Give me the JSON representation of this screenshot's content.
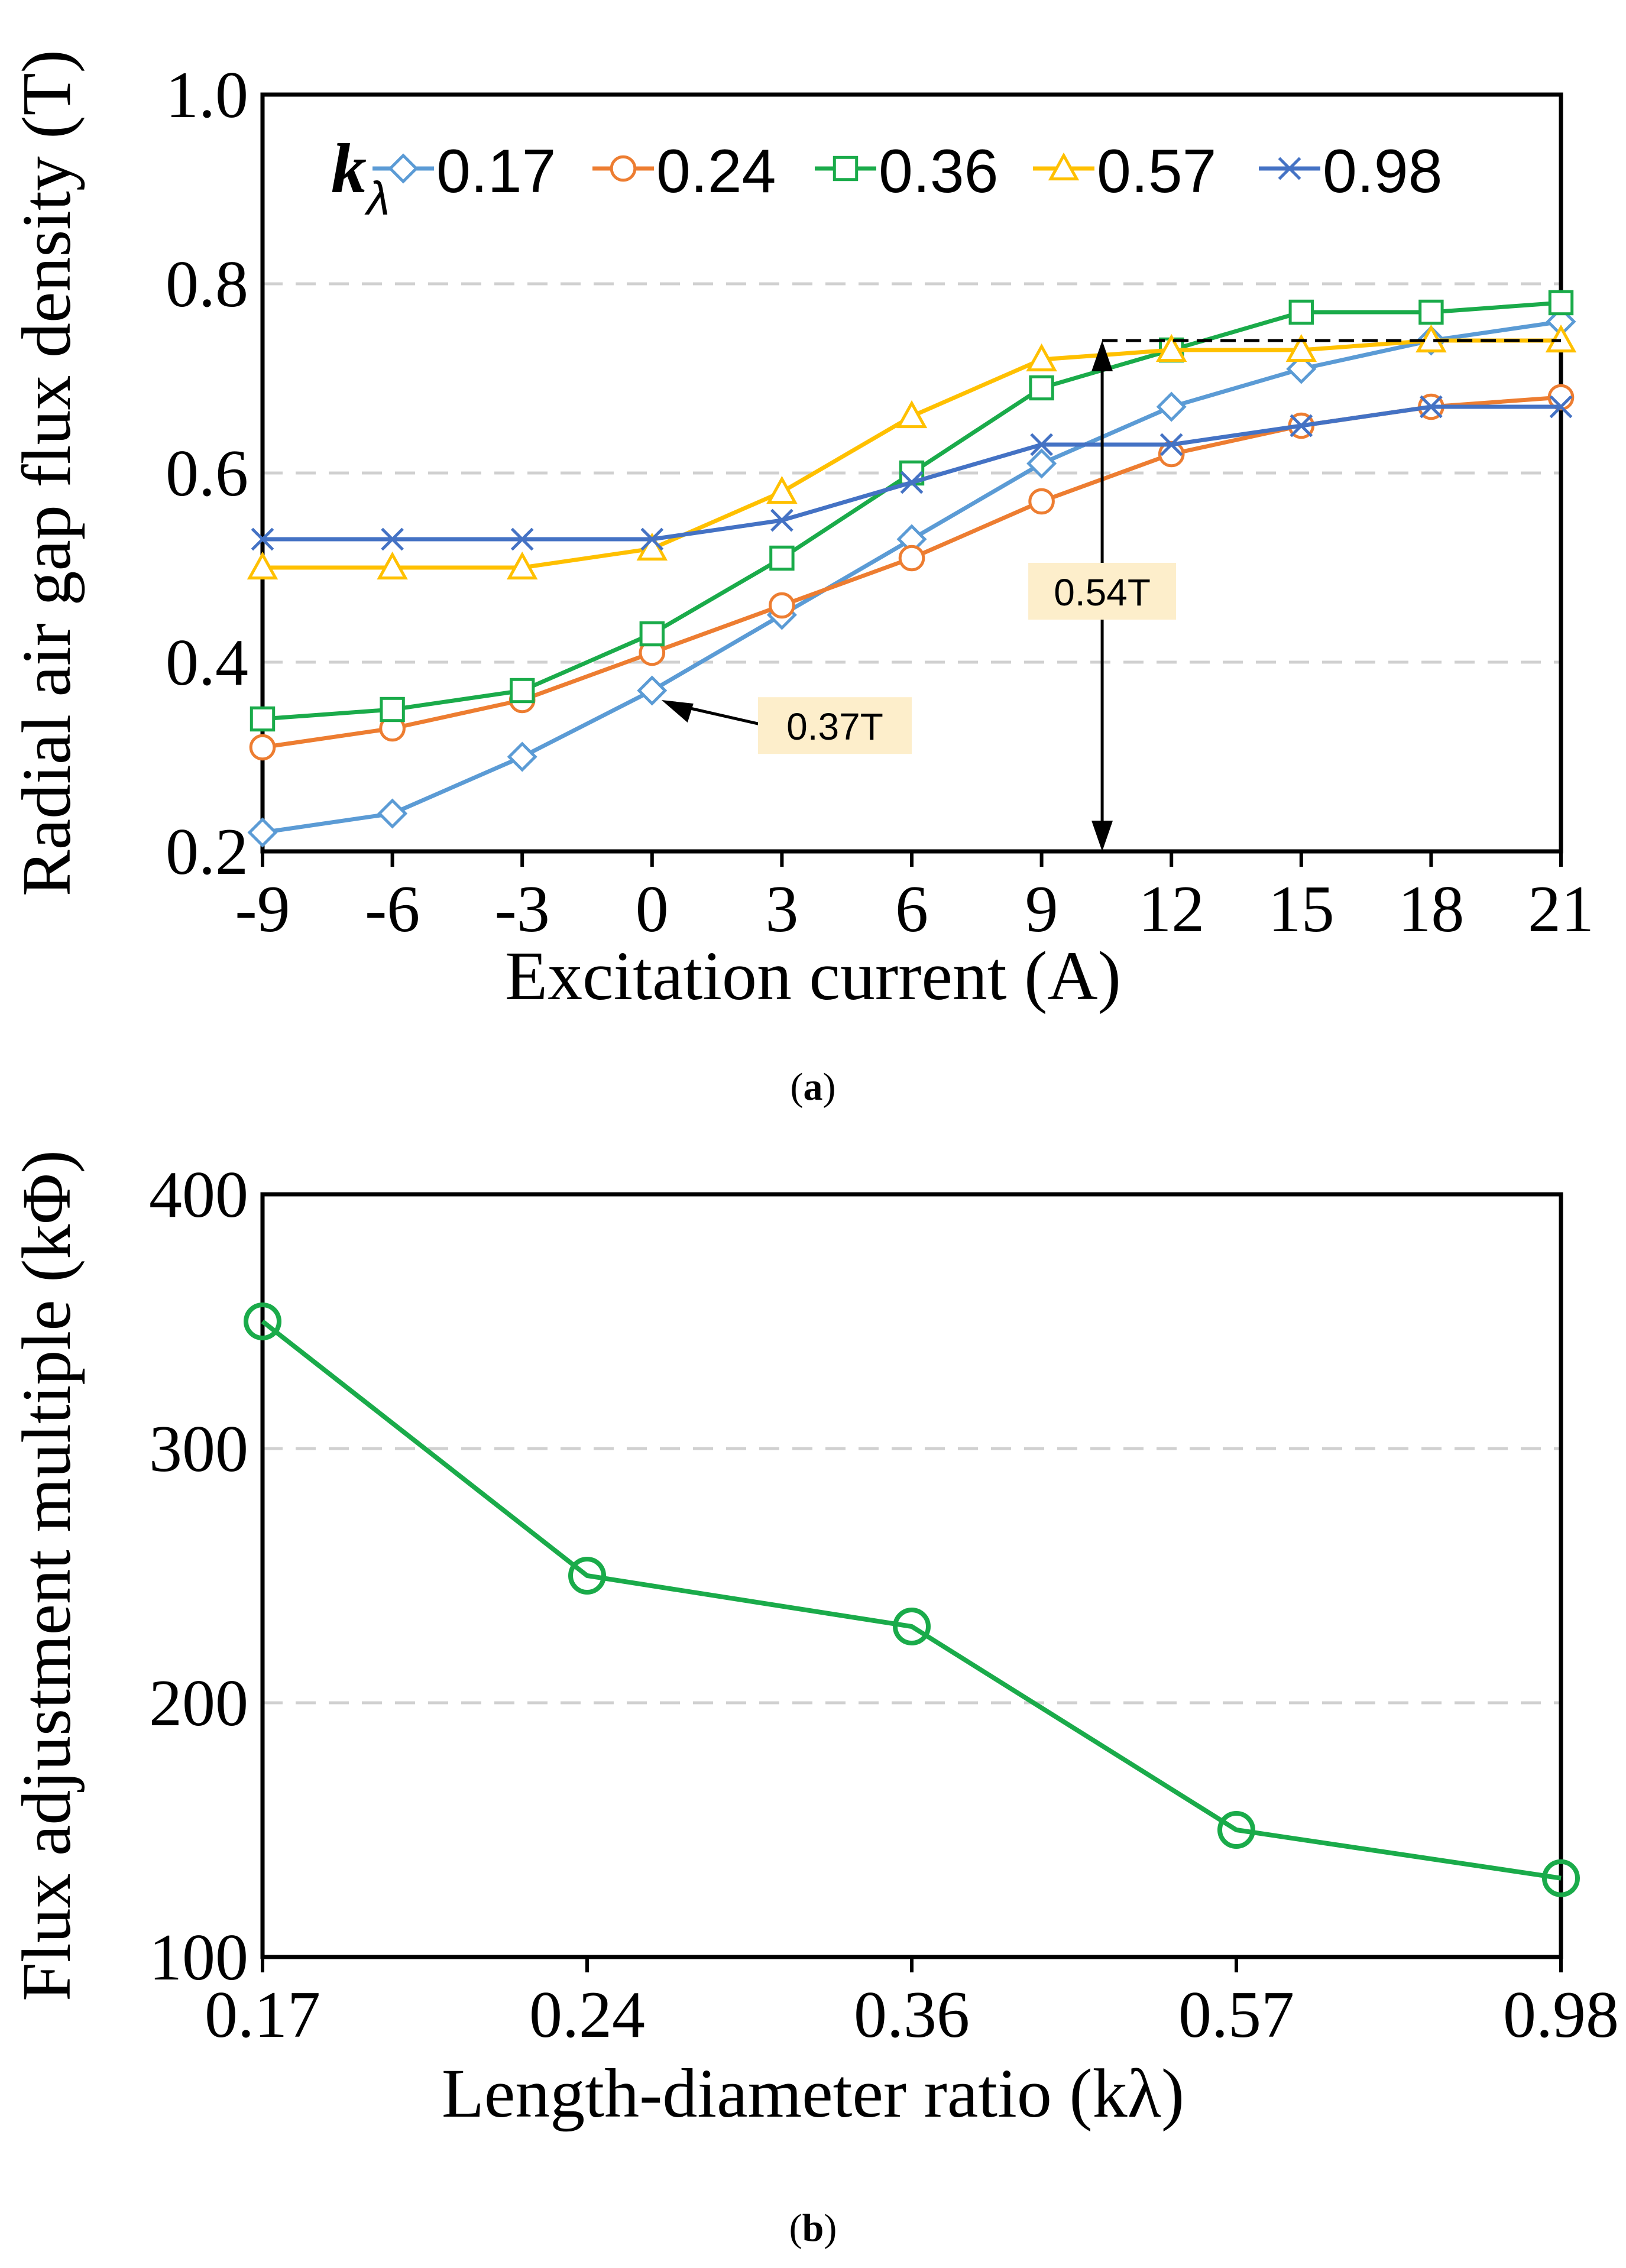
{
  "chart_data": [
    {
      "type": "line",
      "xlabel": "Excitation current (A)",
      "ylabel": "Radial air gap flux density (T)",
      "panel_label": "a",
      "x": [
        -9,
        -6,
        -3,
        0,
        3,
        6,
        9,
        12,
        15,
        18,
        21
      ],
      "xlim": [
        -9,
        21
      ],
      "ylim": [
        0.2,
        1.0
      ],
      "yticks": [
        "0.2",
        "0.4",
        "0.6",
        "0.8",
        "1.0"
      ],
      "xticks": [
        "-9",
        "-6",
        "-3",
        "0",
        "3",
        "6",
        "9",
        "12",
        "15",
        "18",
        "21"
      ],
      "grid": "horizontal dashed at 0.4, 0.6, 0.8",
      "legend_title": "kλ",
      "legend_position": "top",
      "series": [
        {
          "name": "0.17",
          "color": "#5b9bd5",
          "marker": "diamond",
          "values": [
            0.22,
            0.24,
            0.3,
            0.37,
            0.45,
            0.53,
            0.61,
            0.67,
            0.71,
            0.74,
            0.76
          ]
        },
        {
          "name": "0.24",
          "color": "#ed7d31",
          "marker": "circle",
          "values": [
            0.31,
            0.33,
            0.36,
            0.41,
            0.46,
            0.51,
            0.57,
            0.62,
            0.65,
            0.67,
            0.68
          ]
        },
        {
          "name": "0.36",
          "color": "#1aab4a",
          "marker": "square",
          "values": [
            0.34,
            0.35,
            0.37,
            0.43,
            0.51,
            0.6,
            0.69,
            0.73,
            0.77,
            0.77,
            0.78
          ]
        },
        {
          "name": "0.57",
          "color": "#ffc000",
          "marker": "triangle",
          "values": [
            0.5,
            0.5,
            0.5,
            0.52,
            0.58,
            0.66,
            0.72,
            0.73,
            0.73,
            0.74,
            0.74
          ]
        },
        {
          "name": "0.98",
          "color": "#4472c4",
          "marker": "cross",
          "values": [
            0.53,
            0.53,
            0.53,
            0.53,
            0.55,
            0.59,
            0.63,
            0.63,
            0.65,
            0.67,
            0.67
          ]
        }
      ],
      "annotations": [
        {
          "text": "0.37T",
          "points_to": {
            "x": 0,
            "y": 0.37
          }
        },
        {
          "text": "0.54T",
          "from_y": 0.2,
          "to_y": 0.74,
          "at_x": 10.4
        }
      ]
    },
    {
      "type": "line",
      "xlabel": "Length-diameter ratio (kλ)",
      "ylabel": "Flux adjustment multiple (kΦ)",
      "panel_label": "b",
      "categories": [
        "0.17",
        "0.24",
        "0.36",
        "0.57",
        "0.98"
      ],
      "ylim": [
        100,
        400
      ],
      "yticks": [
        "100",
        "200",
        "300",
        "400"
      ],
      "grid": "horizontal dashed at 200, 300",
      "series": [
        {
          "color": "#1aab4a",
          "marker": "circle",
          "values": [
            350,
            250,
            230,
            150,
            131
          ]
        }
      ]
    }
  ]
}
